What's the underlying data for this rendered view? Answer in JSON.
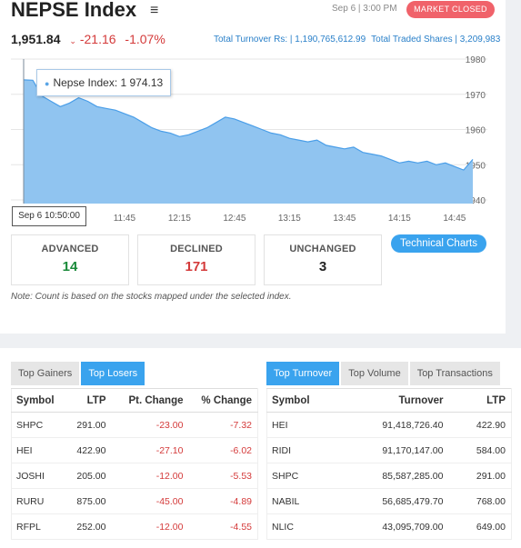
{
  "header": {
    "title": "NEPSE Index",
    "date": "Sep 6 | 3:00 PM",
    "market_status": "MARKET CLOSED",
    "index_value": "1,951.84",
    "change": "-21.16",
    "change_pct": "-1.07%",
    "total_turnover": "Total Turnover Rs: | 1,190,765,612.99",
    "total_traded_shares": "Total Traded Shares | 3,209,983"
  },
  "tooltip": {
    "label": "Nepse Index: 1 974.13",
    "time": "Sep 6 10:50:00"
  },
  "chart_data": {
    "type": "area",
    "y_ticks": [
      "1980",
      "1970",
      "1960",
      "1950",
      "1940"
    ],
    "x_ticks": [
      "11:45",
      "12:15",
      "12:45",
      "13:15",
      "13:45",
      "14:15",
      "14:45"
    ],
    "ylim": [
      1940,
      1980
    ],
    "color": "#90c4f0",
    "line_color": "#4a9ee8",
    "series": [
      {
        "x": [
          "10:50",
          "10:55",
          "11:00",
          "11:05",
          "11:10",
          "11:15",
          "11:20",
          "11:25",
          "11:30",
          "11:35",
          "11:40",
          "11:45",
          "11:50",
          "11:55",
          "12:00",
          "12:05",
          "12:10",
          "12:15",
          "12:20",
          "12:25",
          "12:30",
          "12:35",
          "12:40",
          "12:45",
          "12:50",
          "12:55",
          "13:00",
          "13:05",
          "13:10",
          "13:15",
          "13:20",
          "13:25",
          "13:30",
          "13:35",
          "13:40",
          "13:45",
          "13:50",
          "13:55",
          "14:00",
          "14:05",
          "14:10",
          "14:15",
          "14:20",
          "14:25",
          "14:30",
          "14:35",
          "14:40",
          "14:45",
          "14:50",
          "14:55"
        ],
        "values": [
          1974.1,
          1974,
          1969.5,
          1968,
          1966.5,
          1967.5,
          1969,
          1968,
          1966.5,
          1966,
          1965.5,
          1964.5,
          1963.5,
          1962,
          1960.5,
          1959.5,
          1959,
          1958,
          1958.5,
          1959.5,
          1960.5,
          1962,
          1963.5,
          1963,
          1962,
          1961,
          1960,
          1959,
          1958.5,
          1957.5,
          1957,
          1956.5,
          1957,
          1955.5,
          1955,
          1954.5,
          1955,
          1953.5,
          1953,
          1952.5,
          1951.5,
          1950.5,
          1951,
          1950.5,
          1951,
          1950,
          1950.5,
          1949.5,
          1948.5,
          1951.5
        ]
      }
    ]
  },
  "stats": {
    "advanced": {
      "label": "ADVANCED",
      "value": "14",
      "color": "#1a8a3a"
    },
    "declined": {
      "label": "DECLINED",
      "value": "171",
      "color": "#d43a3a"
    },
    "unchanged": {
      "label": "UNCHANGED",
      "value": "3",
      "color": "#222"
    }
  },
  "tech_charts_label": "Technical Charts",
  "note": "Note: Count is based on the stocks mapped under the selected index.",
  "left_tabs": [
    "Top Gainers",
    "Top Losers"
  ],
  "right_tabs": [
    "Top Turnover",
    "Top Volume",
    "Top Transactions"
  ],
  "losers": {
    "headers": [
      "Symbol",
      "LTP",
      "Pt. Change",
      "% Change"
    ],
    "rows": [
      [
        "SHPC",
        "291.00",
        "-23.00",
        "-7.32"
      ],
      [
        "HEI",
        "422.90",
        "-27.10",
        "-6.02"
      ],
      [
        "JOSHI",
        "205.00",
        "-12.00",
        "-5.53"
      ],
      [
        "RURU",
        "875.00",
        "-45.00",
        "-4.89"
      ],
      [
        "RFPL",
        "252.00",
        "-12.00",
        "-4.55"
      ]
    ]
  },
  "turnover": {
    "headers": [
      "Symbol",
      "Turnover",
      "LTP"
    ],
    "rows": [
      [
        "HEI",
        "91,418,726.40",
        "422.90"
      ],
      [
        "RIDI",
        "91,170,147.00",
        "584.00"
      ],
      [
        "SHPC",
        "85,587,285.00",
        "291.00"
      ],
      [
        "NABIL",
        "56,685,479.70",
        "768.00"
      ],
      [
        "NLIC",
        "43,095,709.00",
        "649.00"
      ]
    ]
  }
}
